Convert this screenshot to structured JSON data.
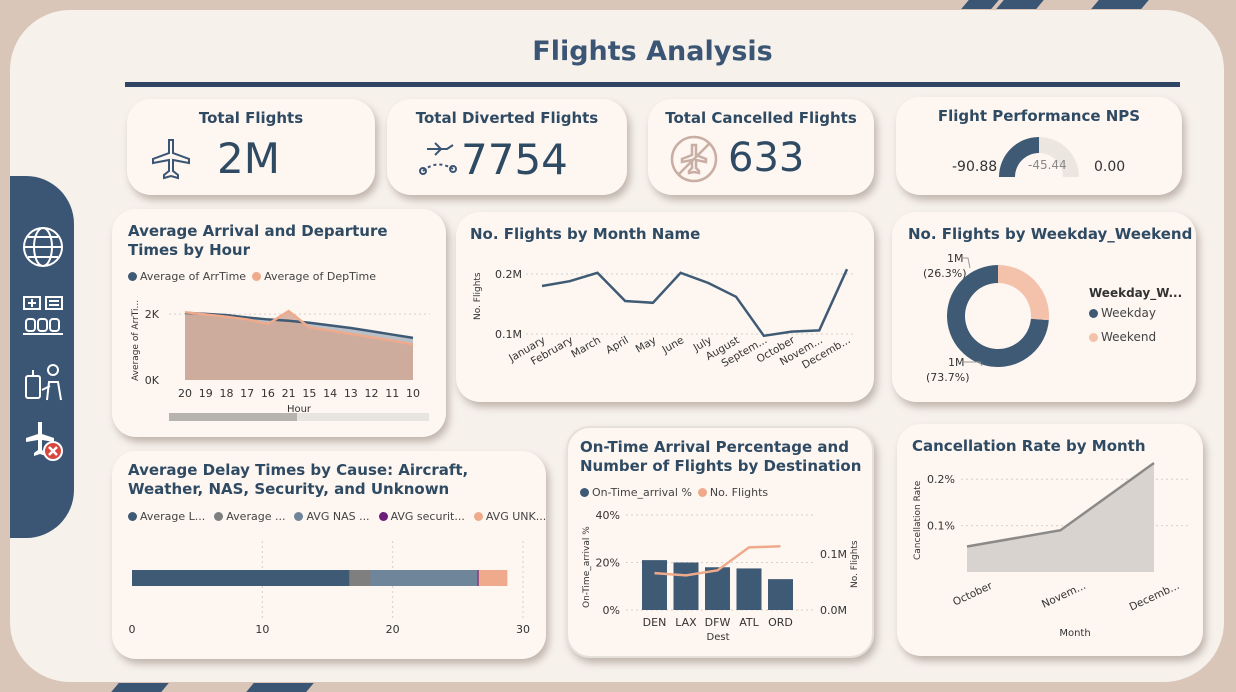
{
  "title": "Flights Analysis",
  "colors": {
    "navy": "#3e5a74",
    "peach": "#efaa8c",
    "grey": "#7f7f7f",
    "slate": "#6f8599",
    "purple": "#6b1f7a",
    "tan": "#c9aea4"
  },
  "kpis": {
    "total_flights": {
      "label": "Total Flights",
      "value": "2M",
      "icon": "airplane-icon"
    },
    "diverted": {
      "label": "Total Diverted Flights",
      "value": "7754",
      "icon": "flight-route-icon"
    },
    "cancelled": {
      "label": "Total Cancelled Flights",
      "value": "633",
      "icon": "no-flight-icon"
    },
    "nps": {
      "label": "Flight Performance NPS",
      "min": "-90.88",
      "max": "0.00",
      "value": "-45.44",
      "value_num": -45.44,
      "min_num": -90.88,
      "max_num": 0
    }
  },
  "nav": [
    "globe-icon",
    "airport-icon",
    "travel-icon",
    "cancelled-flight-icon"
  ],
  "chart_data": [
    {
      "id": "arr_dep",
      "type": "area",
      "title": "Average Arrival and Departure Times by Hour",
      "xlabel": "Hour",
      "ylabel": "Average of ArrTi...",
      "categories": [
        "20",
        "19",
        "18",
        "17",
        "16",
        "21",
        "15",
        "14",
        "13",
        "12",
        "11",
        "10"
      ],
      "series": [
        {
          "name": "Average of ArrTime",
          "values": [
            2040,
            2010,
            1970,
            1900,
            1840,
            1800,
            1740,
            1660,
            1580,
            1480,
            1380,
            1280
          ]
        },
        {
          "name": "Average of DepTime",
          "values": [
            2060,
            1990,
            1920,
            1840,
            1700,
            2090,
            1600,
            1500,
            1400,
            1300,
            1200,
            1080
          ]
        }
      ],
      "yticks": [
        "0K",
        "2K"
      ],
      "ylim": [
        0,
        2400
      ]
    },
    {
      "id": "by_month",
      "type": "line",
      "title": "No. Flights by Month Name",
      "ylabel": "No. Flights",
      "categories": [
        "January",
        "February",
        "March",
        "April",
        "May",
        "June",
        "July",
        "August",
        "Septem...",
        "October",
        "Novem...",
        "Decemb..."
      ],
      "values": [
        180000,
        188000,
        202000,
        155000,
        152000,
        202000,
        185000,
        162000,
        97000,
        104000,
        106000,
        208000
      ],
      "yticks": [
        "0.1M",
        "0.2M"
      ],
      "ylim": [
        60000,
        230000
      ]
    },
    {
      "id": "weekday",
      "type": "pie",
      "title": "No. Flights by Weekday_Weekend",
      "legend_title": "Weekday_W...",
      "slices": [
        {
          "name": "Weekday",
          "value": 73.7,
          "label": "1M",
          "pct": "(73.7%)"
        },
        {
          "name": "Weekend",
          "value": 26.3,
          "label": "1M",
          "pct": "(26.3%)"
        }
      ]
    },
    {
      "id": "delay",
      "type": "bar",
      "title": "Average Delay Times by Cause: Aircraft, Weather, NAS, Security, and Unknown",
      "series": [
        {
          "name": "Average L...",
          "value": 16.7
        },
        {
          "name": "Average ...",
          "value": 1.6
        },
        {
          "name": "AVG NAS ...",
          "value": 8.2
        },
        {
          "name": "AVG securit...",
          "value": 0.1
        },
        {
          "name": "AVG UNK...",
          "value": 2.2
        }
      ],
      "xticks": [
        "0",
        "10",
        "20",
        "30"
      ],
      "xlim": [
        0,
        30
      ]
    },
    {
      "id": "ontime",
      "type": "bar",
      "title": "On-Time Arrival Percentage and Number of Flights by Destination",
      "xlabel": "Dest",
      "ylabel": "On-Time_arrival %",
      "y2label": "No. Flights",
      "categories": [
        "DEN",
        "LAX",
        "DFW",
        "ATL",
        "ORD"
      ],
      "series": [
        {
          "name": "On-Time_arrival %",
          "values": [
            21,
            20,
            18,
            17.5,
            13
          ]
        },
        {
          "name": "No. Flights",
          "values": [
            66000,
            62000,
            71000,
            112000,
            114000
          ]
        }
      ],
      "yticks": [
        "0%",
        "20%",
        "40%"
      ],
      "y2ticks": [
        "0.0M",
        "0.1M"
      ],
      "ylim": [
        0,
        40
      ],
      "y2lim": [
        0,
        170000
      ]
    },
    {
      "id": "cancel",
      "type": "area",
      "title": "Cancellation Rate by Month",
      "xlabel": "Month",
      "ylabel": "Cancellation Rate",
      "categories": [
        "October",
        "Novem...",
        "Decemb..."
      ],
      "values": [
        0.055,
        0.09,
        0.235
      ],
      "yticks": [
        "0.1%",
        "0.2%"
      ],
      "ylim": [
        0.0,
        0.25
      ]
    }
  ]
}
